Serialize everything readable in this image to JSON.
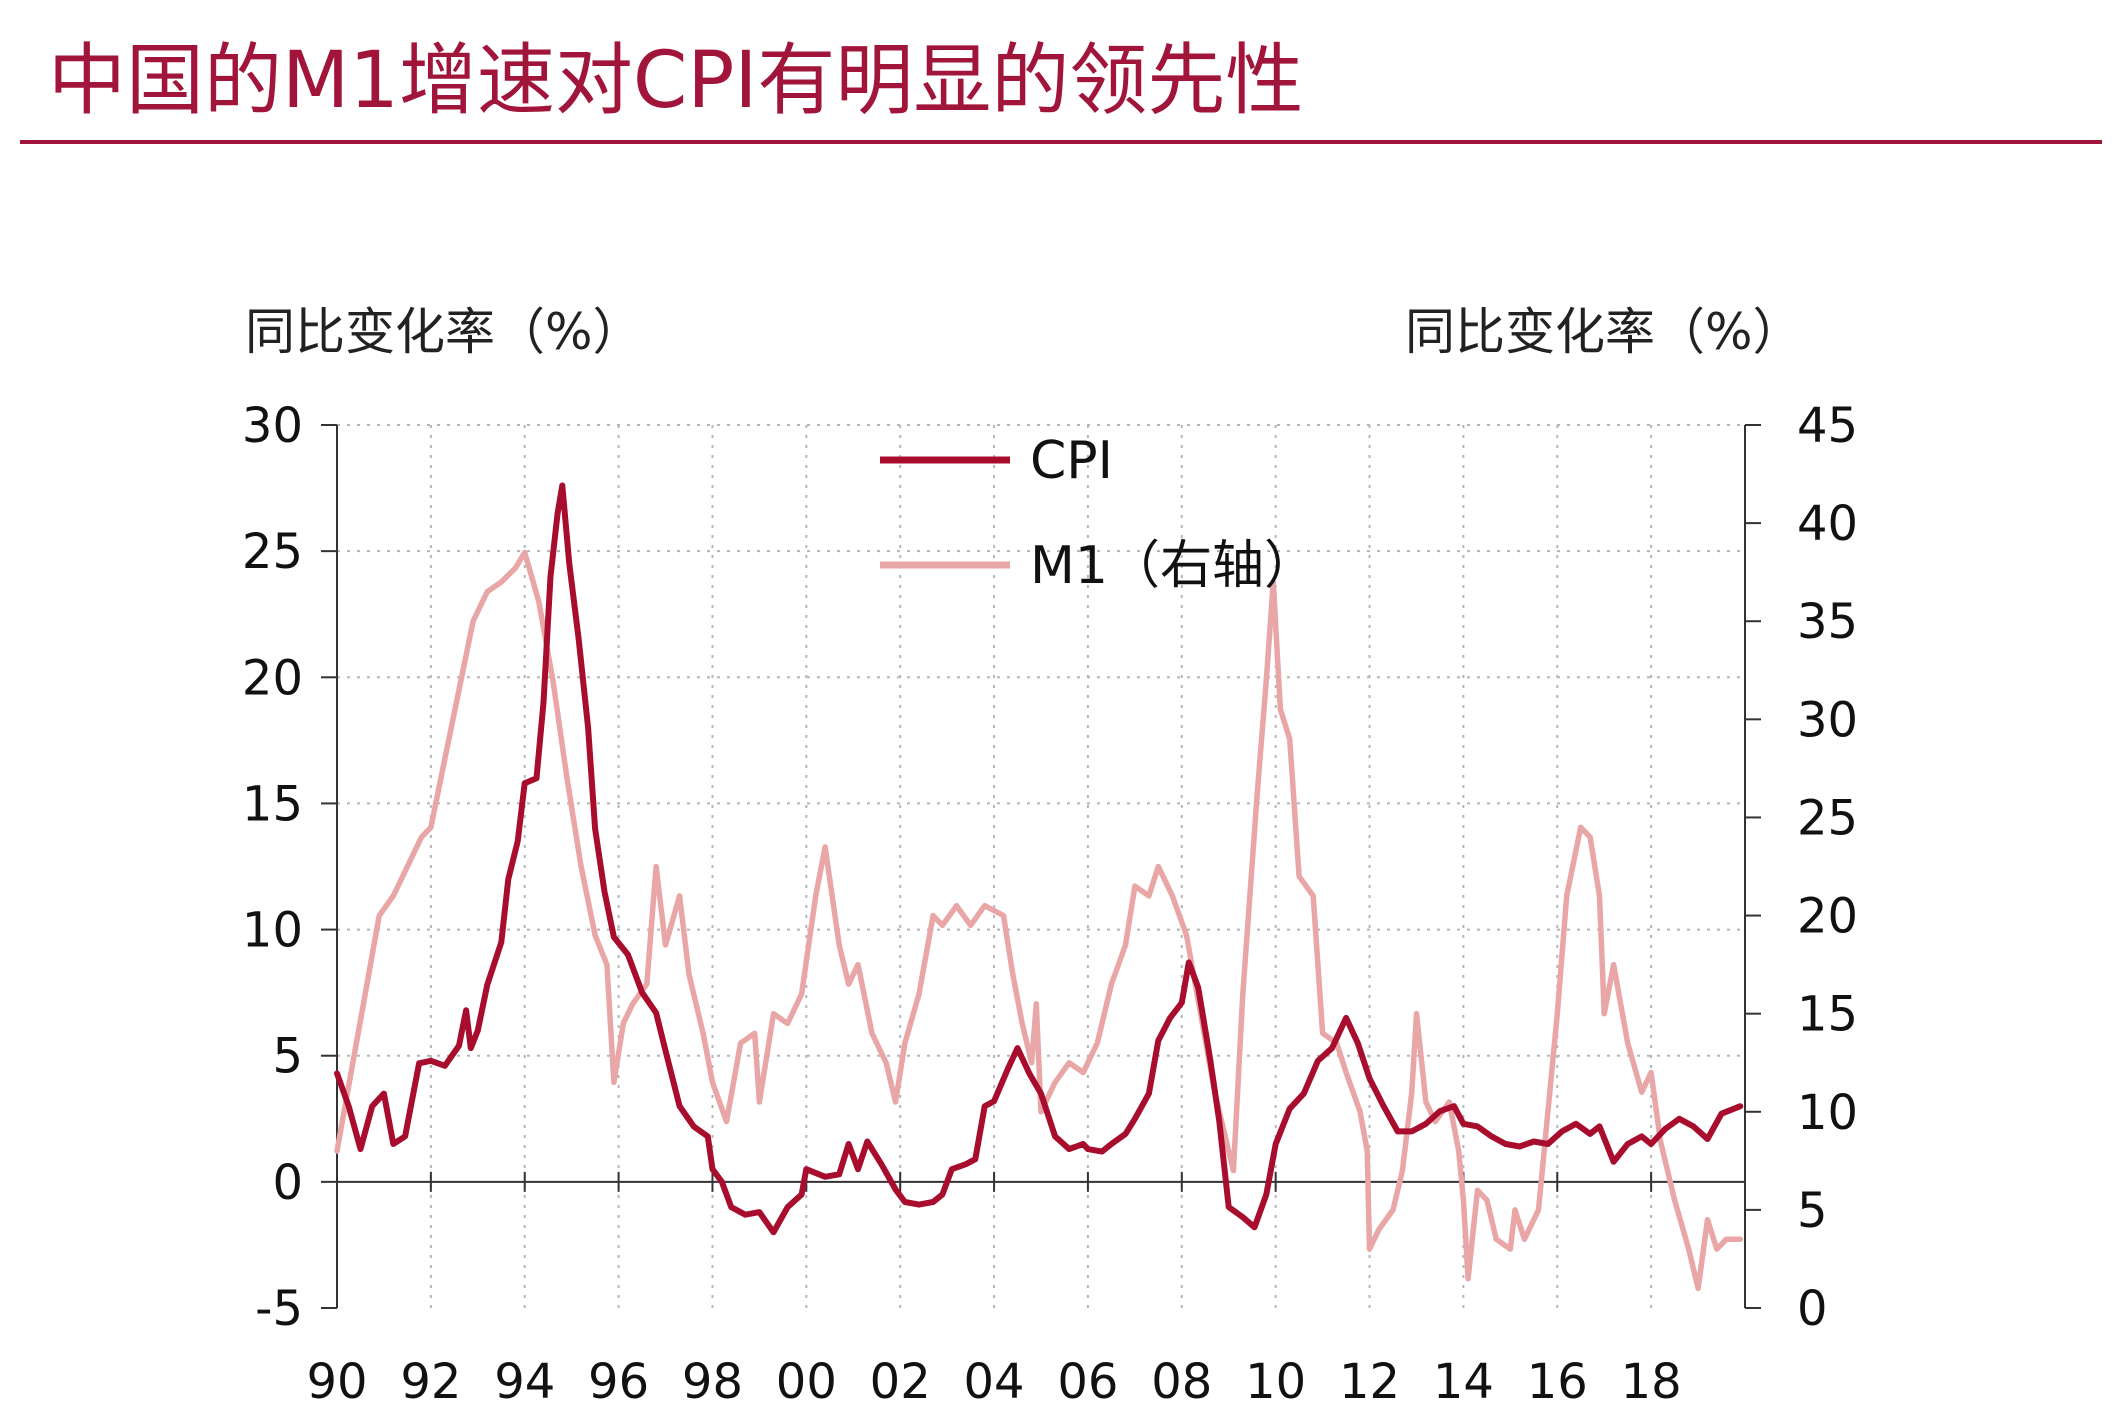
{
  "chart_data": {
    "type": "line",
    "title": "中国的M1增速对CPI有明显的领先性",
    "ylabel": "同比变化率（%）",
    "y2label": "同比变化率（%）",
    "x_ticks": [
      "90",
      "92",
      "94",
      "96",
      "98",
      "00",
      "02",
      "04",
      "06",
      "08",
      "10",
      "12",
      "14",
      "16",
      "18"
    ],
    "x_tick_values": [
      1990,
      1992,
      1994,
      1996,
      1998,
      2000,
      2002,
      2004,
      2006,
      2008,
      2010,
      2012,
      2014,
      2016,
      2018
    ],
    "xlim": [
      1990,
      2020
    ],
    "ylim": [
      -5,
      30
    ],
    "y_ticks": [
      "-5",
      "0",
      "5",
      "10",
      "15",
      "20",
      "25",
      "30"
    ],
    "y_tick_values": [
      -5,
      0,
      5,
      10,
      15,
      20,
      25,
      30
    ],
    "y2lim": [
      0,
      45
    ],
    "y2_ticks": [
      "0",
      "5",
      "10",
      "15",
      "20",
      "25",
      "30",
      "35",
      "40",
      "45"
    ],
    "y2_tick_values": [
      0,
      5,
      10,
      15,
      20,
      25,
      30,
      35,
      40,
      45
    ],
    "grid": true,
    "legend": "top-center",
    "series": [
      {
        "name": "CPI",
        "axis": "left",
        "color": "#a80d2e",
        "points": [
          [
            1990.0,
            4.3
          ],
          [
            1990.25,
            3.0
          ],
          [
            1990.5,
            1.3
          ],
          [
            1990.75,
            3.0
          ],
          [
            1991.0,
            3.5
          ],
          [
            1991.2,
            1.5
          ],
          [
            1991.45,
            1.8
          ],
          [
            1991.75,
            4.7
          ],
          [
            1992.0,
            4.8
          ],
          [
            1992.3,
            4.6
          ],
          [
            1992.6,
            5.4
          ],
          [
            1992.75,
            6.8
          ],
          [
            1992.85,
            5.3
          ],
          [
            1993.0,
            6.0
          ],
          [
            1993.2,
            7.8
          ],
          [
            1993.5,
            9.5
          ],
          [
            1993.65,
            12.0
          ],
          [
            1993.85,
            13.5
          ],
          [
            1994.0,
            15.8
          ],
          [
            1994.25,
            16.0
          ],
          [
            1994.4,
            19.0
          ],
          [
            1994.55,
            24.0
          ],
          [
            1994.7,
            26.5
          ],
          [
            1994.8,
            27.6
          ],
          [
            1994.95,
            24.5
          ],
          [
            1995.15,
            21.5
          ],
          [
            1995.35,
            18.0
          ],
          [
            1995.5,
            14.0
          ],
          [
            1995.7,
            11.5
          ],
          [
            1995.9,
            9.7
          ],
          [
            1996.2,
            9.0
          ],
          [
            1996.5,
            7.5
          ],
          [
            1996.8,
            6.7
          ],
          [
            1997.0,
            5.2
          ],
          [
            1997.3,
            3.0
          ],
          [
            1997.6,
            2.2
          ],
          [
            1997.9,
            1.8
          ],
          [
            1998.0,
            0.5
          ],
          [
            1998.2,
            0.0
          ],
          [
            1998.4,
            -1.0
          ],
          [
            1998.7,
            -1.3
          ],
          [
            1999.0,
            -1.2
          ],
          [
            1999.3,
            -2.0
          ],
          [
            1999.6,
            -1.0
          ],
          [
            1999.9,
            -0.5
          ],
          [
            2000.0,
            0.5
          ],
          [
            2000.4,
            0.2
          ],
          [
            2000.7,
            0.3
          ],
          [
            2000.9,
            1.5
          ],
          [
            2001.1,
            0.5
          ],
          [
            2001.3,
            1.6
          ],
          [
            2001.6,
            0.7
          ],
          [
            2001.9,
            -0.3
          ],
          [
            2002.1,
            -0.8
          ],
          [
            2002.4,
            -0.9
          ],
          [
            2002.7,
            -0.8
          ],
          [
            2002.9,
            -0.5
          ],
          [
            2003.1,
            0.5
          ],
          [
            2003.4,
            0.7
          ],
          [
            2003.6,
            0.9
          ],
          [
            2003.8,
            3.0
          ],
          [
            2004.0,
            3.2
          ],
          [
            2004.3,
            4.5
          ],
          [
            2004.5,
            5.3
          ],
          [
            2004.75,
            4.3
          ],
          [
            2005.0,
            3.5
          ],
          [
            2005.3,
            1.8
          ],
          [
            2005.6,
            1.3
          ],
          [
            2005.9,
            1.5
          ],
          [
            2006.0,
            1.3
          ],
          [
            2006.3,
            1.2
          ],
          [
            2006.5,
            1.5
          ],
          [
            2006.8,
            1.9
          ],
          [
            2007.0,
            2.5
          ],
          [
            2007.3,
            3.5
          ],
          [
            2007.5,
            5.6
          ],
          [
            2007.75,
            6.5
          ],
          [
            2008.0,
            7.1
          ],
          [
            2008.15,
            8.7
          ],
          [
            2008.35,
            7.7
          ],
          [
            2008.6,
            4.9
          ],
          [
            2008.8,
            2.4
          ],
          [
            2009.0,
            -1.0
          ],
          [
            2009.3,
            -1.4
          ],
          [
            2009.55,
            -1.8
          ],
          [
            2009.8,
            -0.5
          ],
          [
            2010.0,
            1.5
          ],
          [
            2010.3,
            2.9
          ],
          [
            2010.6,
            3.5
          ],
          [
            2010.9,
            4.8
          ],
          [
            2011.2,
            5.3
          ],
          [
            2011.5,
            6.5
          ],
          [
            2011.75,
            5.5
          ],
          [
            2012.0,
            4.1
          ],
          [
            2012.3,
            3.0
          ],
          [
            2012.6,
            2.0
          ],
          [
            2012.9,
            2.0
          ],
          [
            2013.2,
            2.3
          ],
          [
            2013.5,
            2.8
          ],
          [
            2013.8,
            3.0
          ],
          [
            2014.0,
            2.3
          ],
          [
            2014.3,
            2.2
          ],
          [
            2014.6,
            1.8
          ],
          [
            2014.9,
            1.5
          ],
          [
            2015.2,
            1.4
          ],
          [
            2015.5,
            1.6
          ],
          [
            2015.8,
            1.5
          ],
          [
            2016.1,
            2.0
          ],
          [
            2016.4,
            2.3
          ],
          [
            2016.7,
            1.9
          ],
          [
            2016.9,
            2.2
          ],
          [
            2017.2,
            0.8
          ],
          [
            2017.5,
            1.5
          ],
          [
            2017.8,
            1.8
          ],
          [
            2018.0,
            1.5
          ],
          [
            2018.3,
            2.1
          ],
          [
            2018.6,
            2.5
          ],
          [
            2018.9,
            2.2
          ],
          [
            2019.2,
            1.7
          ],
          [
            2019.5,
            2.7
          ],
          [
            2019.9,
            3.0
          ]
        ]
      },
      {
        "name": "M1（右轴）",
        "axis": "right",
        "color": "#e9a6a6",
        "points": [
          [
            1990.0,
            8.0
          ],
          [
            1990.3,
            12.0
          ],
          [
            1990.6,
            16.0
          ],
          [
            1990.9,
            20.0
          ],
          [
            1991.2,
            21.0
          ],
          [
            1991.5,
            22.5
          ],
          [
            1991.8,
            24.0
          ],
          [
            1992.0,
            24.5
          ],
          [
            1992.3,
            28.0
          ],
          [
            1992.6,
            31.5
          ],
          [
            1992.9,
            35.0
          ],
          [
            1993.2,
            36.5
          ],
          [
            1993.5,
            37.0
          ],
          [
            1993.8,
            37.7
          ],
          [
            1994.0,
            38.5
          ],
          [
            1994.3,
            36.0
          ],
          [
            1994.6,
            32.0
          ],
          [
            1994.9,
            27.0
          ],
          [
            1995.2,
            22.5
          ],
          [
            1995.5,
            19.0
          ],
          [
            1995.75,
            17.5
          ],
          [
            1995.9,
            11.5
          ],
          [
            1996.1,
            14.5
          ],
          [
            1996.3,
            15.5
          ],
          [
            1996.6,
            16.5
          ],
          [
            1996.8,
            22.5
          ],
          [
            1997.0,
            18.5
          ],
          [
            1997.3,
            21.0
          ],
          [
            1997.5,
            17.0
          ],
          [
            1997.8,
            14.0
          ],
          [
            1998.0,
            11.5
          ],
          [
            1998.3,
            9.5
          ],
          [
            1998.6,
            13.5
          ],
          [
            1998.9,
            14.0
          ],
          [
            1999.0,
            10.5
          ],
          [
            1999.3,
            15.0
          ],
          [
            1999.6,
            14.5
          ],
          [
            1999.9,
            16.0
          ],
          [
            2000.2,
            21.0
          ],
          [
            2000.4,
            23.5
          ],
          [
            2000.7,
            18.5
          ],
          [
            2000.9,
            16.5
          ],
          [
            2001.1,
            17.5
          ],
          [
            2001.4,
            14.0
          ],
          [
            2001.7,
            12.5
          ],
          [
            2001.9,
            10.5
          ],
          [
            2002.1,
            13.5
          ],
          [
            2002.4,
            16.0
          ],
          [
            2002.7,
            20.0
          ],
          [
            2002.9,
            19.5
          ],
          [
            2003.2,
            20.5
          ],
          [
            2003.5,
            19.5
          ],
          [
            2003.8,
            20.5
          ],
          [
            2004.2,
            20.0
          ],
          [
            2004.4,
            17.0
          ],
          [
            2004.6,
            14.5
          ],
          [
            2004.8,
            12.5
          ],
          [
            2004.9,
            15.5
          ],
          [
            2005.0,
            10.0
          ],
          [
            2005.3,
            11.5
          ],
          [
            2005.6,
            12.5
          ],
          [
            2005.9,
            12.0
          ],
          [
            2006.2,
            13.5
          ],
          [
            2006.5,
            16.5
          ],
          [
            2006.8,
            18.5
          ],
          [
            2007.0,
            21.5
          ],
          [
            2007.3,
            21.0
          ],
          [
            2007.5,
            22.5
          ],
          [
            2007.8,
            21.0
          ],
          [
            2008.1,
            19.0
          ],
          [
            2008.4,
            15.0
          ],
          [
            2008.7,
            11.0
          ],
          [
            2008.9,
            9.0
          ],
          [
            2009.1,
            7.0
          ],
          [
            2009.3,
            16.0
          ],
          [
            2009.6,
            26.0
          ],
          [
            2009.8,
            32.0
          ],
          [
            2009.95,
            37.0
          ],
          [
            2010.1,
            30.5
          ],
          [
            2010.3,
            29.0
          ],
          [
            2010.5,
            22.0
          ],
          [
            2010.8,
            21.0
          ],
          [
            2011.0,
            14.0
          ],
          [
            2011.3,
            13.5
          ],
          [
            2011.5,
            12.0
          ],
          [
            2011.8,
            10.0
          ],
          [
            2011.95,
            8.0
          ],
          [
            2012.0,
            3.0
          ],
          [
            2012.2,
            4.0
          ],
          [
            2012.5,
            5.0
          ],
          [
            2012.7,
            7.0
          ],
          [
            2012.9,
            11.0
          ],
          [
            2013.0,
            15.0
          ],
          [
            2013.2,
            10.5
          ],
          [
            2013.4,
            9.5
          ],
          [
            2013.7,
            10.5
          ],
          [
            2013.9,
            8.0
          ],
          [
            2014.0,
            5.5
          ],
          [
            2014.1,
            1.5
          ],
          [
            2014.3,
            6.0
          ],
          [
            2014.5,
            5.5
          ],
          [
            2014.7,
            3.5
          ],
          [
            2015.0,
            3.0
          ],
          [
            2015.1,
            5.0
          ],
          [
            2015.3,
            3.5
          ],
          [
            2015.6,
            5.0
          ],
          [
            2015.8,
            10.0
          ],
          [
            2016.0,
            15.0
          ],
          [
            2016.2,
            21.0
          ],
          [
            2016.5,
            24.5
          ],
          [
            2016.7,
            24.0
          ],
          [
            2016.9,
            21.0
          ],
          [
            2017.0,
            15.0
          ],
          [
            2017.2,
            17.5
          ],
          [
            2017.5,
            13.5
          ],
          [
            2017.8,
            11.0
          ],
          [
            2018.0,
            12.0
          ],
          [
            2018.2,
            8.5
          ],
          [
            2018.5,
            5.5
          ],
          [
            2018.8,
            3.0
          ],
          [
            2019.0,
            1.0
          ],
          [
            2019.2,
            4.5
          ],
          [
            2019.4,
            3.0
          ],
          [
            2019.6,
            3.5
          ],
          [
            2019.9,
            3.5
          ]
        ]
      }
    ]
  }
}
